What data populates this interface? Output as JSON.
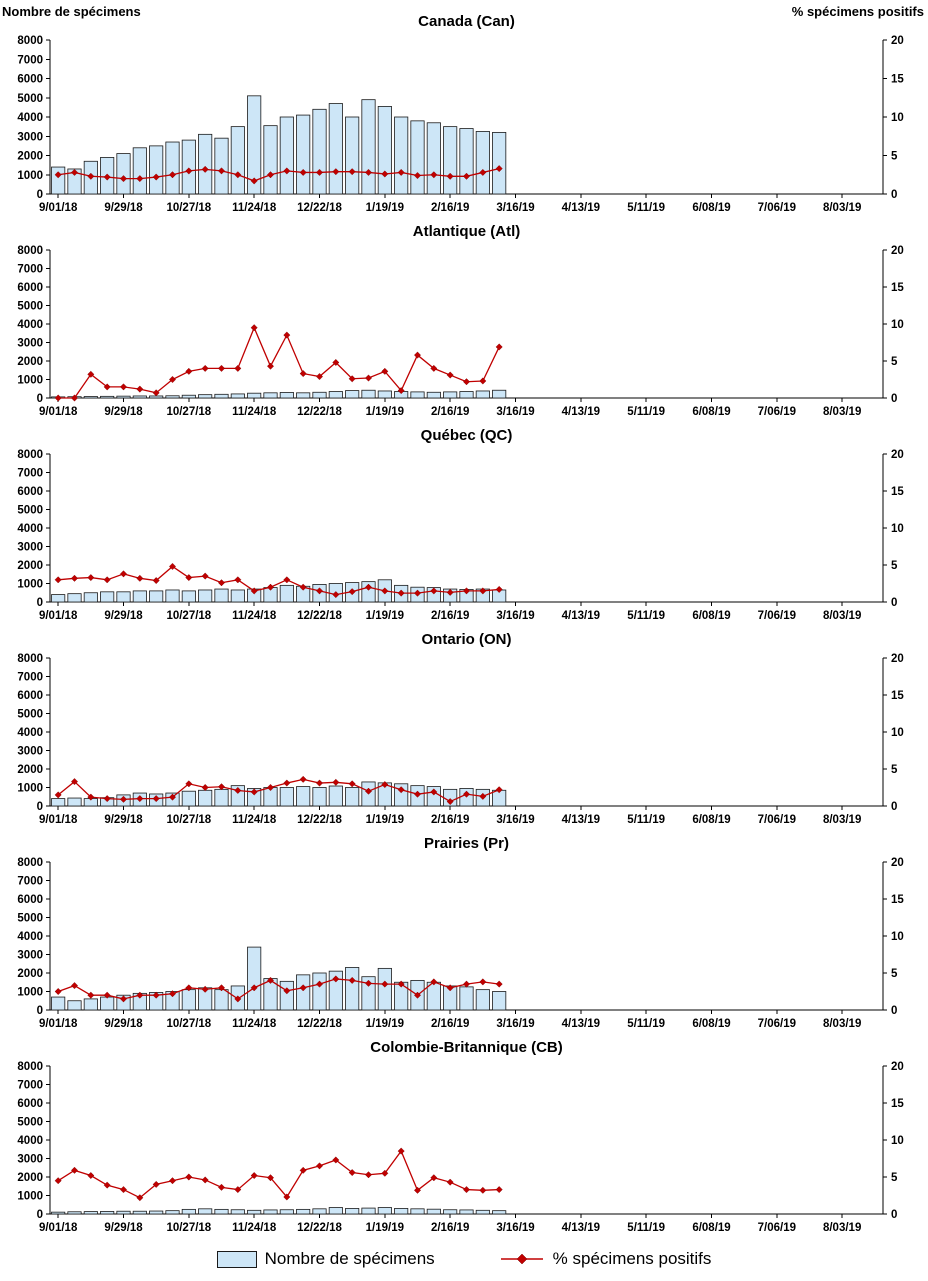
{
  "page": {
    "left_axis_title": "Nombre de spécimens",
    "right_axis_title": "% spécimens positifs"
  },
  "legend": {
    "bars_label": "Nombre de spécimens",
    "line_label": "% spécimens positifs"
  },
  "axes": {
    "x_tick_labels": [
      "9/01/18",
      "9/29/18",
      "10/27/18",
      "11/24/18",
      "12/22/18",
      "1/19/19",
      "2/16/19",
      "3/16/19",
      "4/13/19",
      "5/11/19",
      "6/08/19",
      "7/06/19",
      "8/03/19"
    ],
    "weeks_total": 51,
    "y_left": {
      "min": 0,
      "max": 8000,
      "step": 1000
    },
    "y_right": {
      "min": 0,
      "max": 20,
      "step": 5
    }
  },
  "colors": {
    "bar_fill": "#CDE6F7",
    "bar_stroke": "#1a1a1a",
    "line": "#C00000",
    "axis": "#000000"
  },
  "chart_data": [
    {
      "type": "bar+line",
      "title": "Canada (Can)",
      "ylabel_left": "Nombre de spécimens",
      "ylabel_right": "% spécimens positifs",
      "ylim_left": [
        0,
        8000
      ],
      "ylim_right": [
        0,
        20
      ],
      "grid": false,
      "series": [
        {
          "name": "Nombre de spécimens",
          "axis": "left",
          "type": "bar",
          "values": [
            1400,
            1300,
            1700,
            1900,
            2100,
            2400,
            2500,
            2700,
            2800,
            3100,
            2900,
            3500,
            5100,
            3550,
            4000,
            4100,
            4400,
            4700,
            4000,
            4900,
            4550,
            4000,
            3800,
            3700,
            3500,
            3400,
            3250,
            3200
          ]
        },
        {
          "name": "% spécimens positifs",
          "axis": "right",
          "type": "line",
          "values": [
            2.5,
            2.8,
            2.3,
            2.2,
            2.0,
            2.0,
            2.2,
            2.5,
            3.0,
            3.2,
            3.0,
            2.5,
            1.7,
            2.5,
            3.0,
            2.8,
            2.8,
            2.9,
            2.9,
            2.8,
            2.6,
            2.8,
            2.4,
            2.5,
            2.3,
            2.3,
            2.8,
            3.3
          ]
        }
      ]
    },
    {
      "type": "bar+line",
      "title": "Atlantique (Atl)",
      "ylim_left": [
        0,
        8000
      ],
      "ylim_right": [
        0,
        20
      ],
      "grid": false,
      "series": [
        {
          "name": "Nombre de spécimens",
          "axis": "left",
          "type": "bar",
          "values": [
            60,
            70,
            80,
            90,
            100,
            110,
            110,
            120,
            150,
            180,
            200,
            220,
            260,
            280,
            300,
            280,
            310,
            350,
            400,
            420,
            380,
            350,
            330,
            310,
            330,
            350,
            380,
            420
          ]
        },
        {
          "name": "% spécimens positifs",
          "axis": "right",
          "type": "line",
          "values": [
            0,
            0,
            3.2,
            1.5,
            1.5,
            1.2,
            0.7,
            2.5,
            3.6,
            4.0,
            4.0,
            4.0,
            9.5,
            4.3,
            8.5,
            3.3,
            2.9,
            4.8,
            2.6,
            2.7,
            3.6,
            1.0,
            5.8,
            4.0,
            3.1,
            2.2,
            2.3,
            6.9
          ]
        }
      ]
    },
    {
      "type": "bar+line",
      "title": "Québec (QC)",
      "ylim_left": [
        0,
        8000
      ],
      "ylim_right": [
        0,
        20
      ],
      "grid": false,
      "series": [
        {
          "name": "Nombre de spécimens",
          "axis": "left",
          "type": "bar",
          "values": [
            400,
            450,
            500,
            550,
            550,
            600,
            600,
            650,
            600,
            650,
            700,
            650,
            700,
            780,
            900,
            850,
            950,
            1000,
            1050,
            1100,
            1200,
            900,
            800,
            780,
            700,
            680,
            700,
            650
          ]
        },
        {
          "name": "% spécimens positifs",
          "axis": "right",
          "type": "line",
          "values": [
            3.0,
            3.2,
            3.3,
            3.0,
            3.8,
            3.2,
            2.9,
            4.8,
            3.3,
            3.5,
            2.6,
            3.0,
            1.5,
            2.0,
            3.0,
            2.0,
            1.5,
            1.0,
            1.4,
            2.0,
            1.5,
            1.2,
            1.2,
            1.5,
            1.3,
            1.5,
            1.5,
            1.7
          ]
        }
      ]
    },
    {
      "type": "bar+line",
      "title": "Ontario (ON)",
      "ylim_left": [
        0,
        8000
      ],
      "ylim_right": [
        0,
        20
      ],
      "grid": false,
      "series": [
        {
          "name": "Nombre de spécimens",
          "axis": "left",
          "type": "bar",
          "values": [
            400,
            430,
            400,
            450,
            600,
            700,
            650,
            700,
            800,
            850,
            900,
            1100,
            950,
            1000,
            1000,
            1050,
            1000,
            1080,
            1000,
            1300,
            1250,
            1200,
            1100,
            1050,
            900,
            950,
            900,
            850
          ]
        },
        {
          "name": "% spécimens positifs",
          "axis": "right",
          "type": "line",
          "values": [
            1.5,
            3.3,
            1.2,
            1.0,
            0.9,
            1.0,
            1.0,
            1.2,
            3.0,
            2.5,
            2.6,
            2.1,
            1.9,
            2.5,
            3.1,
            3.6,
            3.1,
            3.2,
            3.0,
            2.0,
            2.9,
            2.2,
            1.6,
            1.9,
            0.6,
            1.6,
            1.3,
            2.2
          ]
        }
      ]
    },
    {
      "type": "bar+line",
      "title": "Prairies (Pr)",
      "ylim_left": [
        0,
        8000
      ],
      "ylim_right": [
        0,
        20
      ],
      "grid": false,
      "series": [
        {
          "name": "Nombre de spécimens",
          "axis": "left",
          "type": "bar",
          "values": [
            700,
            500,
            600,
            700,
            800,
            900,
            950,
            1000,
            1100,
            1200,
            1100,
            1300,
            3400,
            1700,
            1550,
            1900,
            2000,
            2100,
            2300,
            1800,
            2250,
            1500,
            1600,
            1500,
            1300,
            1250,
            1100,
            1000
          ]
        },
        {
          "name": "% spécimens positifs",
          "axis": "right",
          "type": "line",
          "values": [
            2.5,
            3.3,
            2.0,
            2.0,
            1.5,
            2.0,
            2.0,
            2.2,
            3.0,
            2.8,
            3.0,
            1.5,
            3.0,
            4.0,
            2.6,
            3.0,
            3.5,
            4.2,
            4.0,
            3.6,
            3.5,
            3.5,
            2.0,
            3.8,
            3.0,
            3.5,
            3.8,
            3.5
          ]
        }
      ]
    },
    {
      "type": "bar+line",
      "title": "Colombie-Britannique (CB)",
      "ylim_left": [
        0,
        8000
      ],
      "ylim_right": [
        0,
        20
      ],
      "grid": false,
      "series": [
        {
          "name": "Nombre de spécimens",
          "axis": "left",
          "type": "bar",
          "values": [
            100,
            120,
            130,
            140,
            150,
            150,
            160,
            180,
            250,
            280,
            250,
            230,
            200,
            220,
            230,
            250,
            280,
            350,
            300,
            320,
            350,
            300,
            280,
            260,
            230,
            220,
            200,
            180
          ]
        },
        {
          "name": "% spécimens positifs",
          "axis": "right",
          "type": "line",
          "values": [
            4.5,
            5.9,
            5.2,
            3.9,
            3.3,
            2.2,
            4.0,
            4.5,
            5.0,
            4.6,
            3.6,
            3.3,
            5.2,
            4.9,
            2.3,
            5.9,
            6.5,
            7.3,
            5.6,
            5.3,
            5.5,
            8.5,
            3.2,
            4.9,
            4.3,
            3.3,
            3.2,
            3.3
          ]
        }
      ]
    }
  ]
}
